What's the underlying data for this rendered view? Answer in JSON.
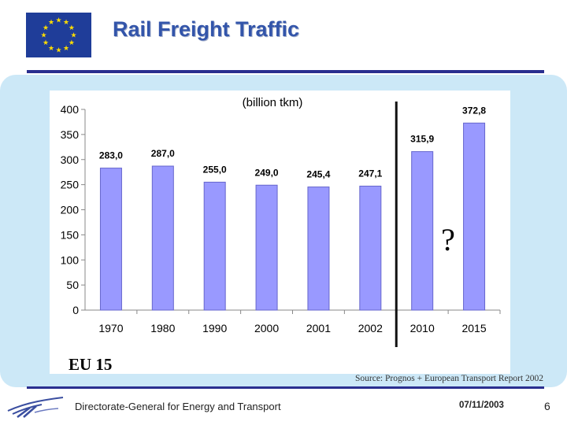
{
  "header": {
    "title": "Rail Freight Traffic"
  },
  "chart_data": {
    "type": "bar",
    "title": "(billion tkm)",
    "categories": [
      "1970",
      "1980",
      "1990",
      "2000",
      "2001",
      "2002",
      "2010",
      "2015"
    ],
    "values": [
      283.0,
      287.0,
      255.0,
      249.0,
      245.4,
      247.1,
      315.9,
      372.8
    ],
    "value_labels": [
      "283,0",
      "287,0",
      "255,0",
      "249,0",
      "245,4",
      "247,1",
      "315,9",
      "372,8"
    ],
    "y_ticks": [
      0,
      50,
      100,
      150,
      200,
      250,
      300,
      350,
      400
    ],
    "ylim": [
      0,
      400
    ],
    "xlabel": "",
    "ylabel": "",
    "bar_color": "#9999ff",
    "grid": false,
    "divider_after_category": "2002",
    "annotation": "?"
  },
  "region_label": "EU 15",
  "source": "Source: Prognos + European Transport Report 2002",
  "footer": {
    "directorate": "Directorate-General for Energy and Transport",
    "date": "07/11/2003",
    "page": "6"
  },
  "colors": {
    "title": "#3355aa",
    "panel": "#cce8f7",
    "rule": "#2a2f8f",
    "flag": "#1f3d99",
    "star": "#ffdd00"
  }
}
